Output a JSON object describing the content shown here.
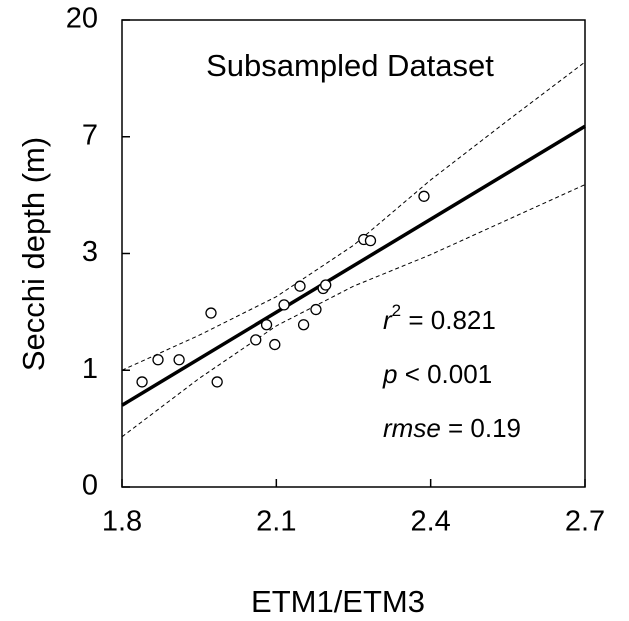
{
  "chart_data": {
    "type": "scatter",
    "title": "Subsampled Dataset",
    "x_label": "ETM1/ETM3",
    "y_label": "Secchi depth (m)",
    "xlim": [
      1.8,
      2.7
    ],
    "xticks": [
      1.8,
      2.1,
      2.4,
      2.7
    ],
    "ylim": [
      0,
      4
    ],
    "yticks": [
      {
        "value": 0,
        "label": "0"
      },
      {
        "value": 1,
        "label": "1"
      },
      {
        "value": 2,
        "label": "3"
      },
      {
        "value": 3,
        "label": "7"
      },
      {
        "value": 4,
        "label": "20"
      }
    ],
    "points": {
      "x": [
        1.839,
        1.87,
        1.911,
        1.973,
        1.985,
        2.06,
        2.081,
        2.097,
        2.115,
        2.146,
        2.153,
        2.177,
        2.191,
        2.196,
        2.27,
        2.283,
        2.387
      ],
      "y": [
        0.9,
        1.09,
        1.09,
        1.49,
        0.9,
        1.26,
        1.39,
        1.22,
        1.56,
        1.72,
        1.39,
        1.52,
        1.7,
        1.73,
        2.12,
        2.11,
        2.49
      ]
    },
    "fit": {
      "x": [
        1.8,
        2.7
      ],
      "y": [
        0.7,
        3.09
      ]
    },
    "upper_band": {
      "x": [
        1.8,
        1.95,
        2.1,
        2.25,
        2.4,
        2.55,
        2.7
      ],
      "y": [
        1.0,
        1.3,
        1.63,
        2.07,
        2.63,
        3.14,
        3.64
      ]
    },
    "lower_band": {
      "x": [
        1.8,
        1.95,
        2.1,
        2.25,
        2.4,
        2.55,
        2.7
      ],
      "y": [
        0.43,
        0.93,
        1.38,
        1.72,
        1.99,
        2.29,
        2.59
      ]
    },
    "annotations": [
      {
        "var": "r",
        "sup": "2",
        "text": " = 0.821"
      },
      {
        "var": "p",
        "text": " < 0.001"
      },
      {
        "var": "rmse",
        "text": " = 0.19"
      }
    ]
  }
}
